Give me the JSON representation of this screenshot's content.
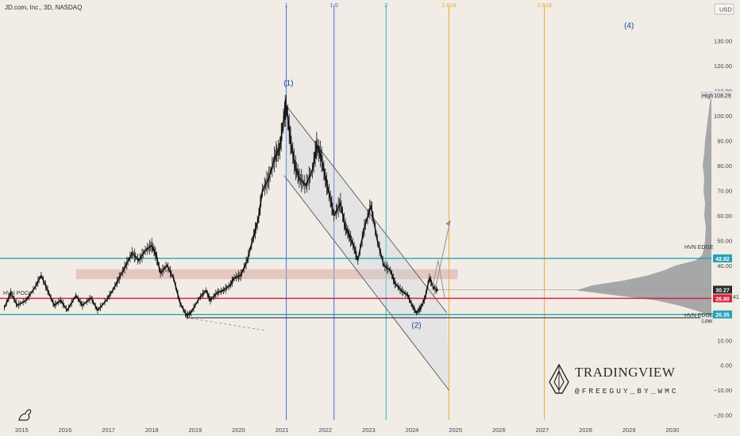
{
  "header": {
    "title": "JD.com, Inc., 3D, NASDAQ",
    "currency": "USD"
  },
  "chart_data": {
    "type": "line",
    "ylim": [
      -22,
      140
    ],
    "yticks": [
      -20,
      -10,
      0,
      10,
      20,
      30,
      40,
      50,
      60,
      70,
      80,
      90,
      100,
      110,
      120,
      130
    ],
    "ytick_labels": [
      "−20.00",
      "−10.00",
      "0.00",
      "10.00",
      "20.00",
      "30.00",
      "40.00",
      "50.00",
      "60.00",
      "70.00",
      "80.00",
      "90.00",
      "100.00",
      "110.00",
      "120.00",
      "130.00"
    ],
    "xlim": [
      2014.5,
      2030.9
    ],
    "xticks": [
      "2015",
      "2016",
      "2017",
      "2018",
      "2019",
      "2020",
      "2021",
      "2022",
      "2023",
      "2024",
      "2025",
      "2026",
      "2027",
      "2028",
      "2029",
      "2030"
    ],
    "price_series": [
      [
        2014.6,
        23
      ],
      [
        2014.75,
        29
      ],
      [
        2014.9,
        24
      ],
      [
        2015.1,
        26
      ],
      [
        2015.3,
        31
      ],
      [
        2015.45,
        36
      ],
      [
        2015.6,
        30
      ],
      [
        2015.75,
        24
      ],
      [
        2015.9,
        26
      ],
      [
        2016.05,
        22
      ],
      [
        2016.25,
        28
      ],
      [
        2016.4,
        24
      ],
      [
        2016.6,
        27
      ],
      [
        2016.75,
        22
      ],
      [
        2016.95,
        26
      ],
      [
        2017.1,
        30
      ],
      [
        2017.25,
        35
      ],
      [
        2017.4,
        40
      ],
      [
        2017.55,
        45
      ],
      [
        2017.7,
        42
      ],
      [
        2017.85,
        46
      ],
      [
        2018.0,
        48
      ],
      [
        2018.1,
        44
      ],
      [
        2018.2,
        37
      ],
      [
        2018.35,
        40
      ],
      [
        2018.5,
        35
      ],
      [
        2018.65,
        25
      ],
      [
        2018.8,
        20
      ],
      [
        2018.9,
        21
      ],
      [
        2019.1,
        27
      ],
      [
        2019.25,
        30
      ],
      [
        2019.35,
        26
      ],
      [
        2019.5,
        29
      ],
      [
        2019.65,
        30
      ],
      [
        2019.8,
        32
      ],
      [
        2019.9,
        35
      ],
      [
        2020.05,
        36
      ],
      [
        2020.2,
        42
      ],
      [
        2020.35,
        52
      ],
      [
        2020.45,
        58
      ],
      [
        2020.55,
        70
      ],
      [
        2020.7,
        75
      ],
      [
        2020.85,
        84
      ],
      [
        2020.95,
        87
      ],
      [
        2021.05,
        100
      ],
      [
        2021.1,
        104
      ],
      [
        2021.2,
        90
      ],
      [
        2021.3,
        80
      ],
      [
        2021.4,
        75
      ],
      [
        2021.55,
        72
      ],
      [
        2021.7,
        78
      ],
      [
        2021.8,
        88
      ],
      [
        2021.9,
        84
      ],
      [
        2022.0,
        75
      ],
      [
        2022.1,
        68
      ],
      [
        2022.2,
        60
      ],
      [
        2022.35,
        65
      ],
      [
        2022.45,
        56
      ],
      [
        2022.55,
        52
      ],
      [
        2022.65,
        48
      ],
      [
        2022.75,
        42
      ],
      [
        2022.9,
        55
      ],
      [
        2023.05,
        64
      ],
      [
        2023.2,
        50
      ],
      [
        2023.35,
        40
      ],
      [
        2023.5,
        38
      ],
      [
        2023.6,
        33
      ],
      [
        2023.75,
        30
      ],
      [
        2023.9,
        28
      ],
      [
        2024.0,
        24
      ],
      [
        2024.1,
        21
      ],
      [
        2024.2,
        23
      ],
      [
        2024.3,
        27
      ],
      [
        2024.4,
        35
      ],
      [
        2024.5,
        31
      ],
      [
        2024.6,
        30
      ]
    ],
    "projection_arrow": [
      [
        2024.5,
        28
      ],
      [
        2024.88,
        58
      ]
    ],
    "horizontal_levels": [
      {
        "name": "HVN EDGE",
        "value": 42.82,
        "label": "42.82",
        "color": "#26a2b5"
      },
      {
        "name": "HVN POC",
        "value": 26.8,
        "label": "26.80",
        "color": "#d6243a"
      },
      {
        "name": "HVN EDGE",
        "value": 20.35,
        "label": "20.35",
        "color": "#26a2b5"
      },
      {
        "name": "current",
        "value": 30.27,
        "label": "30.27",
        "color": "#2b2b2b"
      },
      {
        "name": "High",
        "value": 108.29,
        "label": "108.29",
        "color": "#7a7a7a"
      }
    ],
    "fib_time_lines": [
      {
        "label": "1",
        "x": 2021.1,
        "color": "#4a6ad8"
      },
      {
        "label": "1.5",
        "x": 2022.2,
        "color": "#4a6ad8"
      },
      {
        "label": "2",
        "x": 2023.4,
        "color": "#2ab0c4"
      },
      {
        "label": "2.618",
        "x": 2024.85,
        "color": "#f0a83a"
      },
      {
        "label": "3.618",
        "x": 2027.05,
        "color": "#f0a83a"
      }
    ],
    "wave_labels": [
      {
        "label": "(1)",
        "x": 2021.15,
        "y": 112
      },
      {
        "label": "(2)",
        "x": 2024.1,
        "y": 15
      },
      {
        "label": "(4)",
        "x": 2029.0,
        "y": 135
      }
    ],
    "channel": {
      "upper": [
        [
          2021.1,
          104
        ],
        [
          2024.8,
          21
        ]
      ],
      "lower": [
        [
          2021.05,
          76
        ],
        [
          2024.85,
          -10
        ]
      ]
    },
    "resistance_zone": {
      "x": [
        2016.25,
        2025.05
      ],
      "y": [
        34.5,
        38.5
      ]
    },
    "volume_profile": [
      [
        20,
        3
      ],
      [
        22,
        20
      ],
      [
        24,
        42
      ],
      [
        26,
        70
      ],
      [
        28,
        120
      ],
      [
        30,
        170
      ],
      [
        32,
        150
      ],
      [
        34,
        110
      ],
      [
        36,
        80
      ],
      [
        38,
        60
      ],
      [
        40,
        45
      ],
      [
        42,
        20
      ],
      [
        44,
        12
      ],
      [
        46,
        10
      ],
      [
        50,
        8
      ],
      [
        55,
        7
      ],
      [
        60,
        9
      ],
      [
        65,
        8
      ],
      [
        70,
        10
      ],
      [
        75,
        9
      ],
      [
        80,
        11
      ],
      [
        85,
        9
      ],
      [
        90,
        8
      ],
      [
        95,
        6
      ],
      [
        100,
        4
      ],
      [
        105,
        2
      ],
      [
        108,
        1
      ]
    ],
    "level_label_low": "Low",
    "level_label_high": "High"
  },
  "labels": {
    "hvn_poc": "HVN POC",
    "hvn_edge_top": "HVN EDGE",
    "hvn_edge_bottom": "HVN EDGE",
    "right_tag_extra": "41"
  },
  "watermark": {
    "brand": "TRADINGVIEW",
    "handle": "@FREEGUY_BY_WMC"
  }
}
